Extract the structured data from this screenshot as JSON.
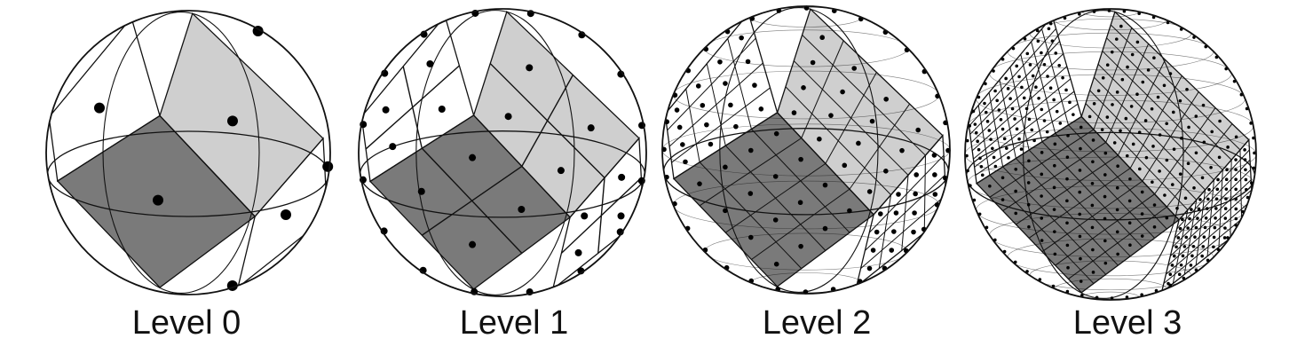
{
  "panels": [
    {
      "label": "Level 0",
      "level": 0
    },
    {
      "label": "Level 1",
      "level": 1
    },
    {
      "label": "Level 2",
      "level": 2
    },
    {
      "label": "Level 3",
      "level": 3
    }
  ],
  "colors": {
    "background": "#ffffff",
    "outline": "#111111",
    "dark_face": "#7a7a7a",
    "light_face": "#cfcfcf",
    "dot": "#000000"
  }
}
